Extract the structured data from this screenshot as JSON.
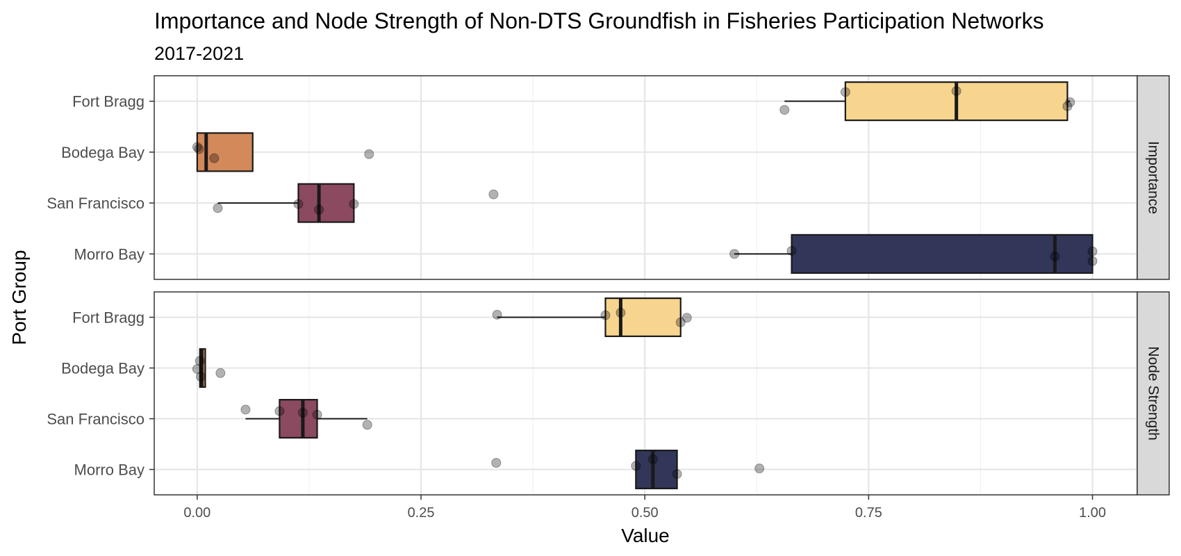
{
  "chart_data": {
    "type": "boxplot",
    "title": "Importance and Node Strength of Non-DTS Groundfish in Fisheries Participation Networks",
    "subtitle": "2017-2021",
    "xlabel": "Value",
    "ylabel": "Port Group",
    "xlim": [
      -0.048,
      1.05
    ],
    "x_ticks": [
      {
        "value": 0.0,
        "label": "0.00"
      },
      {
        "value": 0.25,
        "label": "0.25"
      },
      {
        "value": 0.5,
        "label": "0.50"
      },
      {
        "value": 0.75,
        "label": "0.75"
      },
      {
        "value": 1.0,
        "label": "1.00"
      }
    ],
    "grid": true,
    "categories": [
      "Fort Bragg",
      "Bodega Bay",
      "San Francisco",
      "Morro Bay"
    ],
    "colors": {
      "Fort Bragg": "#f7d58f",
      "Bodega Bay": "#d4895a",
      "San Francisco": "#8b4a5f",
      "Morro Bay": "#323659"
    },
    "facets": [
      {
        "strip_label": "Importance",
        "boxes": [
          {
            "category": "Fort Bragg",
            "whisker_low": 0.656,
            "q1": 0.724,
            "median": 0.848,
            "q3": 0.972,
            "whisker_high": 0.975,
            "points": [
              {
                "x": 0.656,
                "dy": -0.17
              },
              {
                "x": 0.724,
                "dy": 0.18
              },
              {
                "x": 0.848,
                "dy": 0.2
              },
              {
                "x": 0.972,
                "dy": -0.1
              },
              {
                "x": 0.975,
                "dy": -0.02
              }
            ]
          },
          {
            "category": "Bodega Bay",
            "whisker_low": 0.0,
            "q1": 0.0,
            "median": 0.01,
            "q3": 0.062,
            "whisker_high": 0.062,
            "points": [
              {
                "x": 0.0,
                "dy": 0.1
              },
              {
                "x": 0.002,
                "dy": 0.06
              },
              {
                "x": 0.019,
                "dy": -0.12
              },
              {
                "x": 0.192,
                "dy": -0.04
              }
            ]
          },
          {
            "category": "San Francisco",
            "whisker_low": 0.023,
            "q1": 0.113,
            "median": 0.136,
            "q3": 0.175,
            "whisker_high": 0.175,
            "points": [
              {
                "x": 0.023,
                "dy": -0.1
              },
              {
                "x": 0.113,
                "dy": -0.02
              },
              {
                "x": 0.136,
                "dy": -0.13
              },
              {
                "x": 0.175,
                "dy": -0.02
              },
              {
                "x": 0.331,
                "dy": 0.17
              }
            ]
          },
          {
            "category": "Morro Bay",
            "whisker_low": 0.6,
            "q1": 0.664,
            "median": 0.958,
            "q3": 1.0,
            "whisker_high": 1.0,
            "points": [
              {
                "x": 0.6,
                "dy": 0.0
              },
              {
                "x": 0.664,
                "dy": 0.06
              },
              {
                "x": 0.958,
                "dy": -0.05
              },
              {
                "x": 1.0,
                "dy": 0.05
              },
              {
                "x": 1.0,
                "dy": -0.14
              }
            ]
          }
        ]
      },
      {
        "strip_label": "Node Strength",
        "boxes": [
          {
            "category": "Fort Bragg",
            "whisker_low": 0.335,
            "q1": 0.456,
            "median": 0.473,
            "q3": 0.54,
            "whisker_high": 0.54,
            "points": [
              {
                "x": 0.335,
                "dy": 0.05
              },
              {
                "x": 0.456,
                "dy": 0.04
              },
              {
                "x": 0.473,
                "dy": 0.09
              },
              {
                "x": 0.54,
                "dy": -0.1
              },
              {
                "x": 0.547,
                "dy": -0.01
              }
            ]
          },
          {
            "category": "Bodega Bay",
            "whisker_low": 0.003,
            "q1": 0.003,
            "median": 0.005,
            "q3": 0.009,
            "whisker_high": 0.009,
            "points": [
              {
                "x": 0.0,
                "dy": -0.02
              },
              {
                "x": 0.003,
                "dy": 0.14
              },
              {
                "x": 0.004,
                "dy": -0.17
              },
              {
                "x": 0.026,
                "dy": -0.1
              }
            ]
          },
          {
            "category": "San Francisco",
            "whisker_low": 0.054,
            "q1": 0.092,
            "median": 0.118,
            "q3": 0.134,
            "whisker_high": 0.19,
            "points": [
              {
                "x": 0.054,
                "dy": 0.18
              },
              {
                "x": 0.092,
                "dy": 0.15
              },
              {
                "x": 0.118,
                "dy": 0.12
              },
              {
                "x": 0.134,
                "dy": 0.08
              },
              {
                "x": 0.19,
                "dy": -0.12
              }
            ]
          },
          {
            "category": "Morro Bay",
            "whisker_low": 0.49,
            "q1": 0.49,
            "median": 0.509,
            "q3": 0.536,
            "whisker_high": 0.536,
            "points": [
              {
                "x": 0.334,
                "dy": 0.13
              },
              {
                "x": 0.49,
                "dy": 0.07
              },
              {
                "x": 0.509,
                "dy": 0.2
              },
              {
                "x": 0.536,
                "dy": -0.09
              },
              {
                "x": 0.628,
                "dy": 0.02
              }
            ]
          }
        ]
      }
    ]
  }
}
